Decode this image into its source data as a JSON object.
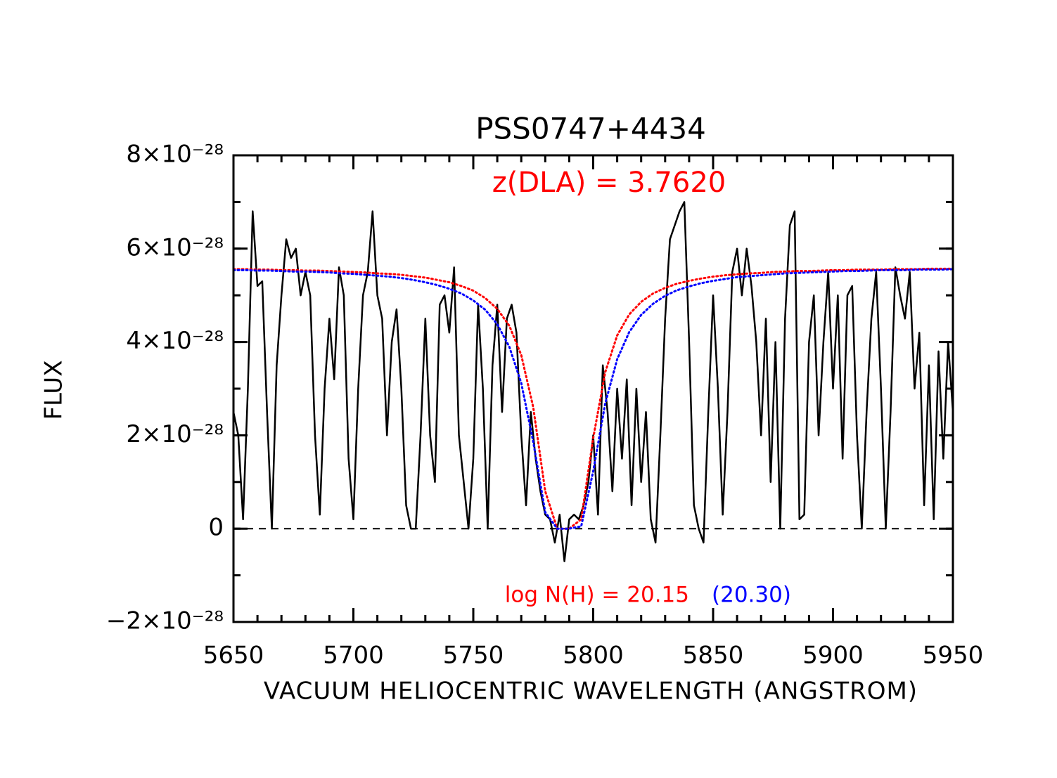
{
  "chart_data": {
    "type": "line",
    "title": "PSS0747+4434",
    "x_label": "VACUUM HELIOCENTRIC WAVELENGTH (ANGSTROM)",
    "y_label": "FLUX",
    "xlim": [
      5650,
      5950
    ],
    "ylim": [
      -2e-28,
      8e-28
    ],
    "xticks": [
      5650,
      5700,
      5750,
      5800,
      5850,
      5900,
      5950
    ],
    "xminorticks": [
      5650,
      5660,
      5670,
      5680,
      5690,
      5700,
      5710,
      5720,
      5730,
      5740,
      5750,
      5760,
      5770,
      5780,
      5790,
      5800,
      5810,
      5820,
      5830,
      5840,
      5850,
      5860,
      5870,
      5880,
      5890,
      5900,
      5910,
      5920,
      5930,
      5940,
      5950
    ],
    "yticks": [
      {
        "value": -2e-28,
        "label": "−2×10⁻²⁸"
      },
      0,
      {
        "value": 2e-28,
        "label": "2×10⁻²⁸"
      },
      {
        "value": 4e-28,
        "label": "4×10⁻²⁸"
      },
      {
        "value": 6e-28,
        "label": "6×10⁻²⁸"
      },
      {
        "value": 8e-28,
        "label": "8×10⁻²⁸"
      }
    ],
    "yminorticks": [
      -2e-28,
      -1e-28,
      0,
      1e-28,
      2e-28,
      3e-28,
      4e-28,
      5e-28,
      6e-28,
      7e-28,
      8e-28
    ],
    "reference_line": 0,
    "annotations": [
      {
        "text": "z(DLA) = 3.7620",
        "color": "#ff0000"
      },
      {
        "text": "log N(H) = 20.15",
        "color": "#ff0000"
      },
      {
        "text": "(20.30)",
        "color": "#0000ff"
      }
    ],
    "series": [
      {
        "color": "#000000",
        "style": "solid",
        "x": [
          5650,
          5652,
          5654,
          5656,
          5658,
          5660,
          5662,
          5664,
          5666,
          5668,
          5670,
          5672,
          5674,
          5676,
          5678,
          5680,
          5682,
          5684,
          5686,
          5688,
          5690,
          5692,
          5694,
          5696,
          5698,
          5700,
          5702,
          5704,
          5706,
          5708,
          5710,
          5712,
          5714,
          5716,
          5718,
          5720,
          5722,
          5724,
          5726,
          5728,
          5730,
          5732,
          5734,
          5736,
          5738,
          5740,
          5742,
          5744,
          5746,
          5748,
          5750,
          5752,
          5754,
          5756,
          5758,
          5760,
          5762,
          5764,
          5766,
          5768,
          5770,
          5772,
          5774,
          5776,
          5778,
          5780,
          5782,
          5784,
          5786,
          5788,
          5790,
          5792,
          5794,
          5796,
          5798,
          5800,
          5802,
          5804,
          5806,
          5808,
          5810,
          5812,
          5814,
          5816,
          5818,
          5820,
          5822,
          5824,
          5826,
          5828,
          5830,
          5832,
          5834,
          5836,
          5838,
          5840,
          5842,
          5844,
          5846,
          5848,
          5850,
          5852,
          5854,
          5856,
          5858,
          5860,
          5862,
          5864,
          5866,
          5868,
          5870,
          5872,
          5874,
          5876,
          5878,
          5880,
          5882,
          5884,
          5886,
          5888,
          5890,
          5892,
          5894,
          5896,
          5898,
          5900,
          5902,
          5904,
          5906,
          5908,
          5910,
          5912,
          5914,
          5916,
          5918,
          5920,
          5922,
          5924,
          5926,
          5928,
          5930,
          5932,
          5934,
          5936,
          5938,
          5940,
          5942,
          5944,
          5946,
          5948,
          5950
        ],
        "values": [
          2.5e-28,
          2e-28,
          2e-29,
          3e-28,
          6.8e-28,
          5.2e-28,
          5.3e-28,
          2.5e-28,
          0.0,
          3.5e-28,
          5e-28,
          6.2e-28,
          5.8e-28,
          6e-28,
          5e-28,
          5.5e-28,
          5e-28,
          2e-28,
          3e-29,
          3e-28,
          4.5e-28,
          3.2e-28,
          5.6e-28,
          5e-28,
          1.5e-28,
          2e-29,
          3e-28,
          5e-28,
          5.5e-28,
          6.8e-28,
          5e-28,
          4.5e-28,
          2e-28,
          4e-28,
          4.7e-28,
          3e-28,
          5e-29,
          0.0,
          0.0,
          2e-28,
          4.5e-28,
          2e-28,
          1e-28,
          4.8e-28,
          5e-28,
          4.2e-28,
          5.6e-28,
          2e-28,
          1e-28,
          0.0,
          1.5e-28,
          4.8e-28,
          3e-28,
          0.0,
          3.5e-28,
          4.8e-28,
          2.5e-28,
          4.5e-28,
          4.8e-28,
          4.2e-28,
          2e-28,
          5e-29,
          2.5e-28,
          1.5e-28,
          8e-29,
          3e-29,
          2e-29,
          -3e-29,
          3e-29,
          -7e-29,
          2e-29,
          3e-29,
          2e-29,
          5e-29,
          1e-28,
          2e-28,
          3e-29,
          3.5e-28,
          2.5e-28,
          8e-29,
          3e-28,
          1.5e-28,
          3.2e-28,
          5e-29,
          3e-28,
          1e-28,
          2.5e-28,
          2e-29,
          -3e-29,
          2e-28,
          4.5e-28,
          6.2e-28,
          6.5e-28,
          6.8e-28,
          7e-28,
          4e-28,
          5e-29,
          0.0,
          -3e-29,
          2.5e-28,
          5e-28,
          3e-28,
          3e-29,
          2.5e-28,
          5.5e-28,
          6e-28,
          5e-28,
          6e-28,
          5.2e-28,
          4e-28,
          2e-28,
          4.5e-28,
          1e-28,
          4e-28,
          0.0,
          4.5e-28,
          6.5e-28,
          6.8e-28,
          2e-29,
          3e-29,
          4e-28,
          5e-28,
          2e-28,
          4e-28,
          5.5e-28,
          3e-28,
          5e-28,
          1.5e-28,
          5e-28,
          5.2e-28,
          2e-28,
          0.0,
          2.5e-28,
          4.5e-28,
          5.5e-28,
          3e-28,
          0.0,
          2.5e-28,
          5.6e-28,
          5e-28,
          4.5e-28,
          5.5e-28,
          3e-28,
          4.2e-28,
          5e-29,
          3.5e-28,
          2e-29,
          3.8e-28,
          1.5e-28,
          4e-28,
          2.5e-28
        ]
      },
      {
        "color": "#ff0000",
        "style": "dotted",
        "x": [
          5650,
          5655,
          5660,
          5665,
          5670,
          5675,
          5680,
          5685,
          5690,
          5695,
          5700,
          5705,
          5710,
          5715,
          5720,
          5725,
          5730,
          5735,
          5740,
          5745,
          5750,
          5755,
          5760,
          5765,
          5770,
          5775,
          5780,
          5785,
          5790,
          5795,
          5800,
          5805,
          5810,
          5815,
          5820,
          5825,
          5830,
          5835,
          5840,
          5845,
          5850,
          5855,
          5860,
          5865,
          5870,
          5875,
          5880,
          5885,
          5890,
          5895,
          5900,
          5905,
          5910,
          5915,
          5920,
          5925,
          5930,
          5935,
          5940,
          5945,
          5950
        ],
        "values": [
          5.56e-28,
          5.56e-28,
          5.55e-28,
          5.55e-28,
          5.54e-28,
          5.54e-28,
          5.53e-28,
          5.53e-28,
          5.52e-28,
          5.51e-28,
          5.5e-28,
          5.49e-28,
          5.47e-28,
          5.46e-28,
          5.44e-28,
          5.41e-28,
          5.38e-28,
          5.33e-28,
          5.28e-28,
          5.2e-28,
          5.1e-28,
          4.94e-28,
          4.71e-28,
          4.35e-28,
          3.72e-28,
          2.6e-28,
          8e-29,
          0.0,
          0.0,
          2e-29,
          1.94e-28,
          3.35e-28,
          4.14e-28,
          4.59e-28,
          4.86e-28,
          5.04e-28,
          5.16e-28,
          5.25e-28,
          5.31e-28,
          5.36e-28,
          5.4e-28,
          5.43e-28,
          5.45e-28,
          5.47e-28,
          5.48e-28,
          5.5e-28,
          5.51e-28,
          5.52e-28,
          5.52e-28,
          5.53e-28,
          5.54e-28,
          5.54e-28,
          5.55e-28,
          5.55e-28,
          5.55e-28,
          5.56e-28,
          5.56e-28,
          5.56e-28,
          5.57e-28,
          5.57e-28,
          5.57e-28
        ]
      },
      {
        "color": "#0000ff",
        "style": "dotted",
        "x": [
          5650,
          5655,
          5660,
          5665,
          5670,
          5675,
          5680,
          5685,
          5690,
          5695,
          5700,
          5705,
          5710,
          5715,
          5720,
          5725,
          5730,
          5735,
          5740,
          5745,
          5750,
          5755,
          5760,
          5765,
          5770,
          5775,
          5780,
          5785,
          5790,
          5795,
          5800,
          5805,
          5810,
          5815,
          5820,
          5825,
          5830,
          5835,
          5840,
          5845,
          5850,
          5855,
          5860,
          5865,
          5870,
          5875,
          5880,
          5885,
          5890,
          5895,
          5900,
          5905,
          5910,
          5915,
          5920,
          5925,
          5930,
          5935,
          5940,
          5945,
          5950
        ],
        "values": [
          5.54e-28,
          5.54e-28,
          5.53e-28,
          5.53e-28,
          5.52e-28,
          5.51e-28,
          5.51e-28,
          5.5e-28,
          5.49e-28,
          5.47e-28,
          5.46e-28,
          5.44e-28,
          5.42e-28,
          5.4e-28,
          5.37e-28,
          5.33e-28,
          5.28e-28,
          5.22e-28,
          5.14e-28,
          5.04e-28,
          4.89e-28,
          4.69e-28,
          4.38e-28,
          3.9e-28,
          3.12e-28,
          1.86e-28,
          3.5e-29,
          0.0,
          0.0,
          5e-30,
          1.23e-28,
          2.68e-28,
          3.63e-28,
          4.21e-28,
          4.58e-28,
          4.82e-28,
          4.99e-28,
          5.11e-28,
          5.19e-28,
          5.26e-28,
          5.31e-28,
          5.35e-28,
          5.39e-28,
          5.41e-28,
          5.43e-28,
          5.45e-28,
          5.47e-28,
          5.48e-28,
          5.49e-28,
          5.5e-28,
          5.51e-28,
          5.52e-28,
          5.52e-28,
          5.53e-28,
          5.54e-28,
          5.54e-28,
          5.54e-28,
          5.55e-28,
          5.55e-28,
          5.55e-28,
          5.56e-28
        ]
      }
    ]
  }
}
